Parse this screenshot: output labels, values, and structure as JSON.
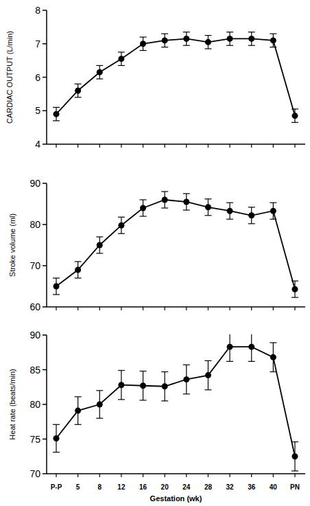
{
  "chart_data": [
    {
      "type": "line",
      "y_label": "CARDIAC OUTPUT (L/min)",
      "categories": [
        "P-P",
        "5",
        "8",
        "12",
        "16",
        "20",
        "24",
        "28",
        "32",
        "36",
        "40",
        "PN"
      ],
      "values": [
        4.9,
        5.6,
        6.15,
        6.55,
        7.0,
        7.1,
        7.15,
        7.05,
        7.15,
        7.15,
        7.1,
        4.85
      ],
      "errors": [
        0.2,
        0.2,
        0.2,
        0.2,
        0.2,
        0.2,
        0.2,
        0.2,
        0.2,
        0.2,
        0.2,
        0.2
      ],
      "color": "#000000",
      "marker": "circle",
      "ylim": [
        4,
        8
      ],
      "yticks": [
        4,
        5,
        6,
        7,
        8
      ],
      "tick_labels": "y"
    },
    {
      "type": "line",
      "y_label": "Stroke volume (ml)",
      "categories": [
        "P-P",
        "5",
        "8",
        "12",
        "16",
        "20",
        "24",
        "28",
        "32",
        "36",
        "40",
        "PN"
      ],
      "values": [
        65,
        69,
        75,
        79.8,
        84,
        86,
        85.5,
        84.2,
        83.3,
        82.2,
        83.3,
        64.3
      ],
      "errors": [
        2,
        2,
        2,
        2,
        2,
        2,
        2,
        2,
        2,
        2,
        2,
        2
      ],
      "color": "#000000",
      "marker": "circle",
      "ylim": [
        60,
        90
      ],
      "yticks": [
        60,
        70,
        80,
        90
      ],
      "tick_labels": "y"
    },
    {
      "type": "line",
      "y_label": "Heat rate (beats/min)",
      "x_label": "Gestation (wk)",
      "categories": [
        "P-P",
        "5",
        "8",
        "12",
        "16",
        "20",
        "24",
        "28",
        "32",
        "36",
        "40",
        "PN"
      ],
      "values": [
        75.1,
        79.1,
        80,
        82.8,
        82.7,
        82.6,
        83.6,
        84.2,
        88.3,
        88.3,
        86.8,
        72.5
      ],
      "errors": [
        2,
        2,
        2,
        2.1,
        2.1,
        2.1,
        2.1,
        2.1,
        2.1,
        2.1,
        2.1,
        2.1
      ],
      "color": "#000000",
      "marker": "circle",
      "ylim": [
        70,
        90
      ],
      "yticks": [
        70,
        75,
        80,
        85,
        90
      ]
    }
  ]
}
